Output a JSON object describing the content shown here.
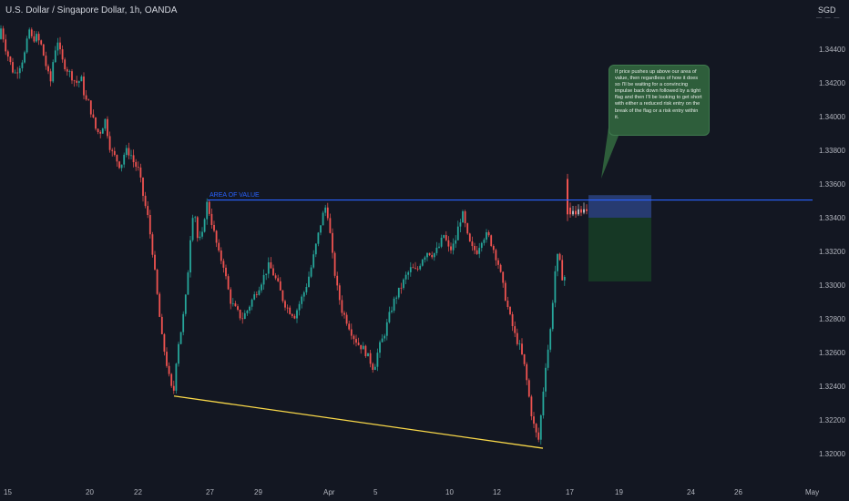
{
  "symbol": {
    "title": "U.S. Dollar / Singapore Dollar, 1h, OANDA"
  },
  "price_axis": {
    "currency": "SGD",
    "currency_sub": "— — —",
    "labels": [
      "1.34400",
      "1.34200",
      "1.34000",
      "1.33800",
      "1.33600",
      "1.33400",
      "1.33200",
      "1.33000",
      "1.32800",
      "1.32600",
      "1.32400",
      "1.32200",
      "1.32000"
    ]
  },
  "time_axis": {
    "labels": [
      "15",
      "20",
      "22",
      "27",
      "29",
      "Apr",
      "5",
      "10",
      "12",
      "17",
      "19",
      "24",
      "26",
      "May"
    ]
  },
  "annotations": {
    "area_of_value_label": "AREA OF VALUE",
    "callout_text": "If price pushes up above our area of value, then regardless of how it does so I'll be waiting for a convincing impulse back down followed by a tight flag and then I'll be looking to get short with either a reduced risk entry on the break of the flag or a risk entry within it."
  },
  "colors": {
    "background": "#131722",
    "bull": "#26a69a",
    "bear": "#ef5350",
    "area_line": "#2962ff",
    "support_line": "#f9d849",
    "risk_zone": "#2a3f7a",
    "target_zone": "#163a26",
    "callout_bg": "#2e5e3b"
  },
  "chart_data": {
    "type": "candlestick",
    "price_path": [
      [
        0,
        1.3446
      ],
      [
        4,
        1.3453
      ],
      [
        8,
        1.3442
      ],
      [
        12,
        1.3435
      ],
      [
        18,
        1.3425
      ],
      [
        22,
        1.3428
      ],
      [
        26,
        1.3432
      ],
      [
        30,
        1.3438
      ],
      [
        35,
        1.3452
      ],
      [
        38,
        1.3445
      ],
      [
        42,
        1.3448
      ],
      [
        48,
        1.3442
      ],
      [
        54,
        1.3428
      ],
      [
        58,
        1.342
      ],
      [
        62,
        1.3438
      ],
      [
        66,
        1.3445
      ],
      [
        70,
        1.3434
      ],
      [
        74,
        1.343
      ],
      [
        80,
        1.3425
      ],
      [
        86,
        1.342
      ],
      [
        92,
        1.3422
      ],
      [
        96,
        1.341
      ],
      [
        100,
        1.3408
      ],
      [
        104,
        1.34
      ],
      [
        108,
        1.3392
      ],
      [
        112,
        1.339
      ],
      [
        118,
        1.3398
      ],
      [
        124,
        1.338
      ],
      [
        130,
        1.3375
      ],
      [
        135,
        1.337
      ],
      [
        140,
        1.338
      ],
      [
        146,
        1.3378
      ],
      [
        150,
        1.3372
      ],
      [
        155,
        1.3368
      ],
      [
        160,
        1.3352
      ],
      [
        165,
        1.334
      ],
      [
        170,
        1.332
      ],
      [
        176,
        1.329
      ],
      [
        180,
        1.327
      ],
      [
        185,
        1.3255
      ],
      [
        190,
        1.324
      ],
      [
        193,
        1.3235
      ],
      [
        197,
        1.3262
      ],
      [
        202,
        1.3275
      ],
      [
        206,
        1.329
      ],
      [
        210,
        1.3315
      ],
      [
        213,
        1.334
      ],
      [
        216,
        1.3345
      ],
      [
        220,
        1.3325
      ],
      [
        225,
        1.333
      ],
      [
        229,
        1.335
      ],
      [
        233,
        1.3342
      ],
      [
        238,
        1.333
      ],
      [
        243,
        1.3318
      ],
      [
        248,
        1.3312
      ],
      [
        252,
        1.33
      ],
      [
        256,
        1.329
      ],
      [
        262,
        1.3285
      ],
      [
        268,
        1.328
      ],
      [
        274,
        1.3285
      ],
      [
        280,
        1.3292
      ],
      [
        286,
        1.3298
      ],
      [
        292,
        1.3305
      ],
      [
        298,
        1.3312
      ],
      [
        304,
        1.3305
      ],
      [
        308,
        1.33
      ],
      [
        314,
        1.329
      ],
      [
        320,
        1.3285
      ],
      [
        326,
        1.3282
      ],
      [
        332,
        1.329
      ],
      [
        338,
        1.3298
      ],
      [
        344,
        1.331
      ],
      [
        350,
        1.3325
      ],
      [
        356,
        1.334
      ],
      [
        361,
        1.3348
      ],
      [
        364,
        1.3335
      ],
      [
        368,
        1.3315
      ],
      [
        372,
        1.33
      ],
      [
        378,
        1.3285
      ],
      [
        384,
        1.3278
      ],
      [
        390,
        1.327
      ],
      [
        396,
        1.3265
      ],
      [
        402,
        1.3262
      ],
      [
        408,
        1.3256
      ],
      [
        413,
        1.325
      ],
      [
        418,
        1.3262
      ],
      [
        424,
        1.327
      ],
      [
        430,
        1.3282
      ],
      [
        436,
        1.3292
      ],
      [
        442,
        1.3298
      ],
      [
        448,
        1.3305
      ],
      [
        454,
        1.331
      ],
      [
        460,
        1.3308
      ],
      [
        466,
        1.3316
      ],
      [
        472,
        1.332
      ],
      [
        478,
        1.3318
      ],
      [
        484,
        1.3322
      ],
      [
        490,
        1.333
      ],
      [
        496,
        1.332
      ],
      [
        502,
        1.3325
      ],
      [
        507,
        1.3338
      ],
      [
        511,
        1.3342
      ],
      [
        515,
        1.333
      ],
      [
        520,
        1.3322
      ],
      [
        526,
        1.332
      ],
      [
        532,
        1.3328
      ],
      [
        538,
        1.333
      ],
      [
        544,
        1.3322
      ],
      [
        550,
        1.3312
      ],
      [
        556,
        1.3296
      ],
      [
        562,
        1.3282
      ],
      [
        568,
        1.327
      ],
      [
        574,
        1.3262
      ],
      [
        579,
        1.325
      ],
      [
        583,
        1.3235
      ],
      [
        587,
        1.322
      ],
      [
        591,
        1.3212
      ],
      [
        594,
        1.3208
      ],
      [
        598,
        1.3232
      ],
      [
        602,
        1.3255
      ],
      [
        606,
        1.3268
      ],
      [
        610,
        1.3295
      ],
      [
        613,
        1.3315
      ],
      [
        616,
        1.3318
      ],
      [
        619,
        1.3305
      ]
    ],
    "late_candles": [
      [
        623,
        1.3363,
        1.3342,
        1.3366,
        1.3338
      ],
      [
        626,
        1.3346,
        1.3342,
        1.3349,
        1.334
      ],
      [
        629,
        1.3342,
        1.3344,
        1.3347,
        1.3341
      ],
      [
        632,
        1.3344,
        1.3342,
        1.3347,
        1.334
      ],
      [
        635,
        1.3342,
        1.3345,
        1.3348,
        1.3341
      ],
      [
        638,
        1.3345,
        1.3343,
        1.3347,
        1.3341
      ],
      [
        641,
        1.3343,
        1.3345,
        1.3349,
        1.3342
      ],
      [
        644,
        1.3345,
        1.3344,
        1.3348,
        1.3342
      ]
    ],
    "area_of_value": {
      "price": 1.33505,
      "x_start": 228,
      "x_end": 892
    },
    "support_line": {
      "from": [
        191,
        1.32342
      ],
      "to": [
        596,
        1.32032
      ]
    },
    "risk_zone": {
      "top": 1.33534,
      "bottom": 1.334
    },
    "target_zone": {
      "top": 1.334,
      "bottom": 1.33022
    },
    "y_range": [
      1.3185,
      1.3462
    ]
  }
}
